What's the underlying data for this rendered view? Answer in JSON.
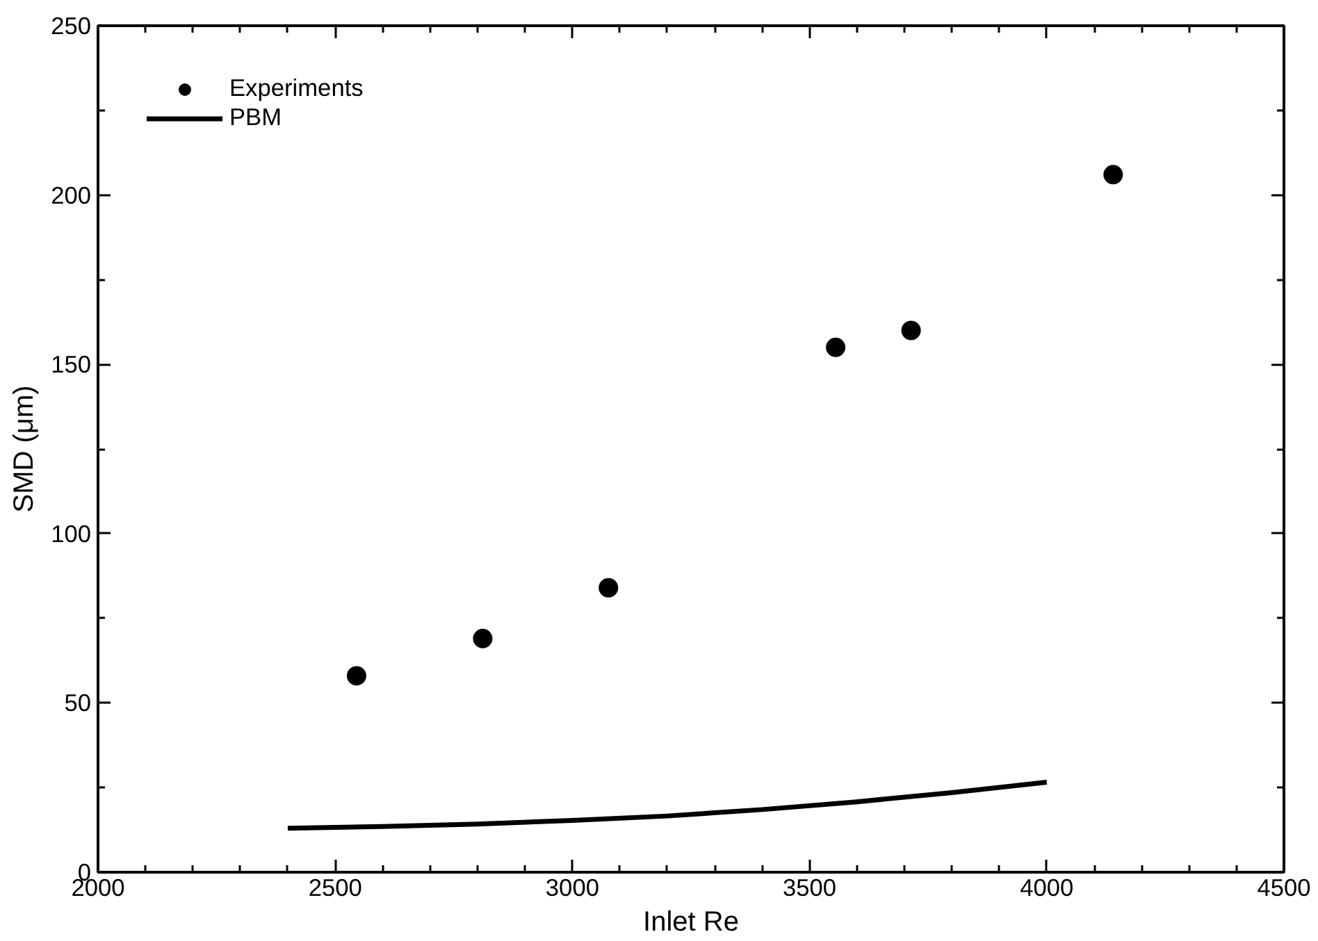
{
  "chart_data": {
    "type": "scatter",
    "xlabel": "Inlet Re",
    "ylabel": "SMD (μm)",
    "xlim": [
      2000,
      4500
    ],
    "ylim": [
      0,
      250
    ],
    "xticks": [
      2000,
      {
        "value": 2100,
        "label": null
      },
      {
        "value": 2200,
        "label": null
      },
      {
        "value": 2300,
        "label": null
      },
      {
        "value": 2400,
        "label": null
      },
      2500,
      {
        "value": 2600,
        "label": null
      },
      {
        "value": 2700,
        "label": null
      },
      {
        "value": 2800,
        "label": null
      },
      {
        "value": 2900,
        "label": null
      },
      3000,
      {
        "value": 3100,
        "label": null
      },
      {
        "value": 3200,
        "label": null
      },
      {
        "value": 3300,
        "label": null
      },
      {
        "value": 3400,
        "label": null
      },
      3500,
      {
        "value": 3600,
        "label": null
      },
      {
        "value": 3700,
        "label": null
      },
      {
        "value": 3800,
        "label": null
      },
      {
        "value": 3900,
        "label": null
      },
      4000,
      {
        "value": 4100,
        "label": null
      },
      {
        "value": 4200,
        "label": null
      },
      {
        "value": 4300,
        "label": null
      },
      {
        "value": 4400,
        "label": null
      },
      4500
    ],
    "yticks": [
      0,
      {
        "value": 25,
        "label": null
      },
      50,
      {
        "value": 75,
        "label": null
      },
      100,
      {
        "value": 125,
        "label": null
      },
      150,
      {
        "value": 175,
        "label": null
      },
      200,
      {
        "value": 225,
        "label": null
      },
      250
    ],
    "grid": false,
    "legend": "top left",
    "series": [
      {
        "name": "Experiments",
        "marker": "circle",
        "color": "#000000",
        "x": [
          2545,
          2811,
          3076,
          3555,
          3714,
          4140
        ],
        "values": [
          58,
          69,
          84,
          155,
          160,
          206
        ]
      },
      {
        "name": "PBM",
        "type": "line",
        "marker": "none",
        "line_style": "solid",
        "color": "#000000",
        "x": [
          2400,
          2600,
          2800,
          3000,
          3200,
          3400,
          3600,
          3800,
          4000
        ],
        "values": [
          13,
          13.5,
          14.2,
          15.3,
          16.6,
          18.5,
          20.8,
          23.5,
          26.6
        ]
      }
    ]
  }
}
